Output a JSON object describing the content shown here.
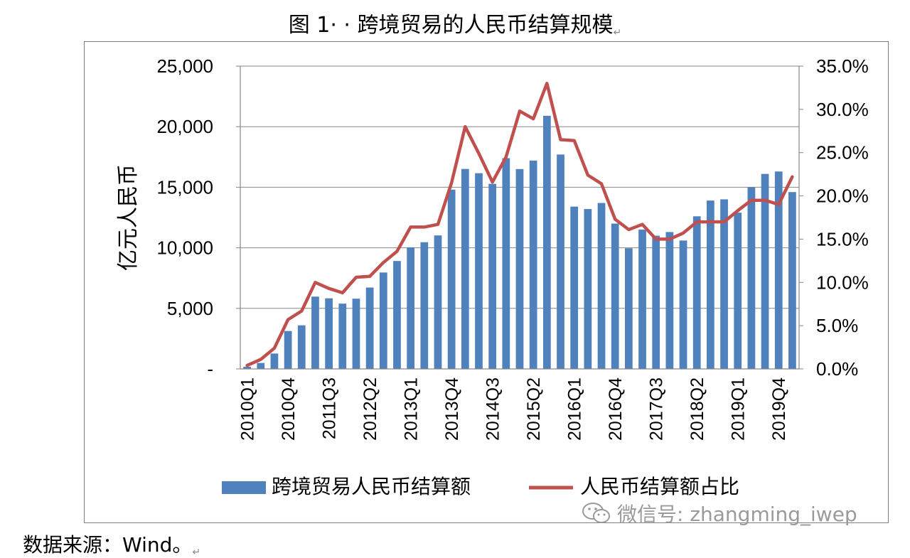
{
  "figure_title": "图 1· · 跨境贸易的人民币结算规模",
  "source_note": "数据来源：Wind。",
  "watermark": "微信号: zhangming_iwep",
  "colors": {
    "bar": "#4f81bd",
    "line": "#c0504d",
    "axis": "#868686",
    "frame": "#7f7f7f"
  },
  "chart_data": {
    "type": "bar",
    "ylabel": "亿元人民币",
    "y_left": {
      "min": 0,
      "max": 25000,
      "ticks": [
        0,
        5000,
        10000,
        15000,
        20000,
        25000
      ],
      "tick_labels": [
        "-",
        "5,000",
        "10,000",
        "15,000",
        "20,000",
        "25,000"
      ]
    },
    "y_right": {
      "min": 0,
      "max": 0.35,
      "ticks": [
        0,
        0.05,
        0.1,
        0.15,
        0.2,
        0.25,
        0.3,
        0.35
      ],
      "tick_labels": [
        "0.0%",
        "5.0%",
        "10.0%",
        "15.0%",
        "20.0%",
        "25.0%",
        "30.0%",
        "35.0%"
      ]
    },
    "categories": [
      "2010Q1",
      "2010Q2",
      "2010Q3",
      "2010Q4",
      "2011Q1",
      "2011Q2",
      "2011Q3",
      "2011Q4",
      "2012Q1",
      "2012Q2",
      "2012Q3",
      "2012Q4",
      "2013Q1",
      "2013Q2",
      "2013Q3",
      "2013Q4",
      "2014Q1",
      "2014Q2",
      "2014Q3",
      "2014Q4",
      "2015Q1",
      "2015Q2",
      "2015Q3",
      "2015Q4",
      "2016Q1",
      "2016Q2",
      "2016Q3",
      "2016Q4",
      "2017Q1",
      "2017Q2",
      "2017Q3",
      "2017Q4",
      "2018Q1",
      "2018Q2",
      "2018Q3",
      "2018Q4",
      "2019Q1",
      "2019Q2",
      "2019Q3",
      "2019Q4",
      "2020Q1"
    ],
    "x_tick_labels_shown": [
      "2010Q1",
      "2010Q4",
      "2011Q3",
      "2012Q2",
      "2013Q1",
      "2013Q4",
      "2014Q3",
      "2015Q2",
      "2016Q1",
      "2016Q4",
      "2017Q3",
      "2018Q2",
      "2019Q1",
      "2019Q4"
    ],
    "series": [
      {
        "name": "跨境贸易人民币结算额",
        "kind": "bar",
        "axis": "left",
        "values": [
          180,
          490,
          1270,
          3130,
          3600,
          5970,
          5830,
          5390,
          5800,
          6720,
          7960,
          8910,
          10040,
          10460,
          11020,
          14800,
          16510,
          16160,
          15280,
          17400,
          16500,
          17200,
          20900,
          17700,
          13400,
          13200,
          13700,
          12000,
          9960,
          11500,
          11000,
          11300,
          10600,
          12600,
          13900,
          14000,
          12900,
          15000,
          16100,
          16300,
          14600
        ]
      },
      {
        "name": "人民币结算额占比",
        "kind": "line",
        "axis": "right",
        "values": [
          0.004,
          0.011,
          0.024,
          0.057,
          0.067,
          0.1,
          0.093,
          0.088,
          0.106,
          0.107,
          0.123,
          0.136,
          0.164,
          0.164,
          0.167,
          0.215,
          0.28,
          0.249,
          0.216,
          0.245,
          0.298,
          0.289,
          0.33,
          0.265,
          0.264,
          0.224,
          0.214,
          0.173,
          0.161,
          0.167,
          0.15,
          0.15,
          0.157,
          0.17,
          0.17,
          0.17,
          0.183,
          0.195,
          0.195,
          0.19,
          0.222
        ]
      }
    ],
    "legend_position": "bottom",
    "grid": "horizontal"
  }
}
